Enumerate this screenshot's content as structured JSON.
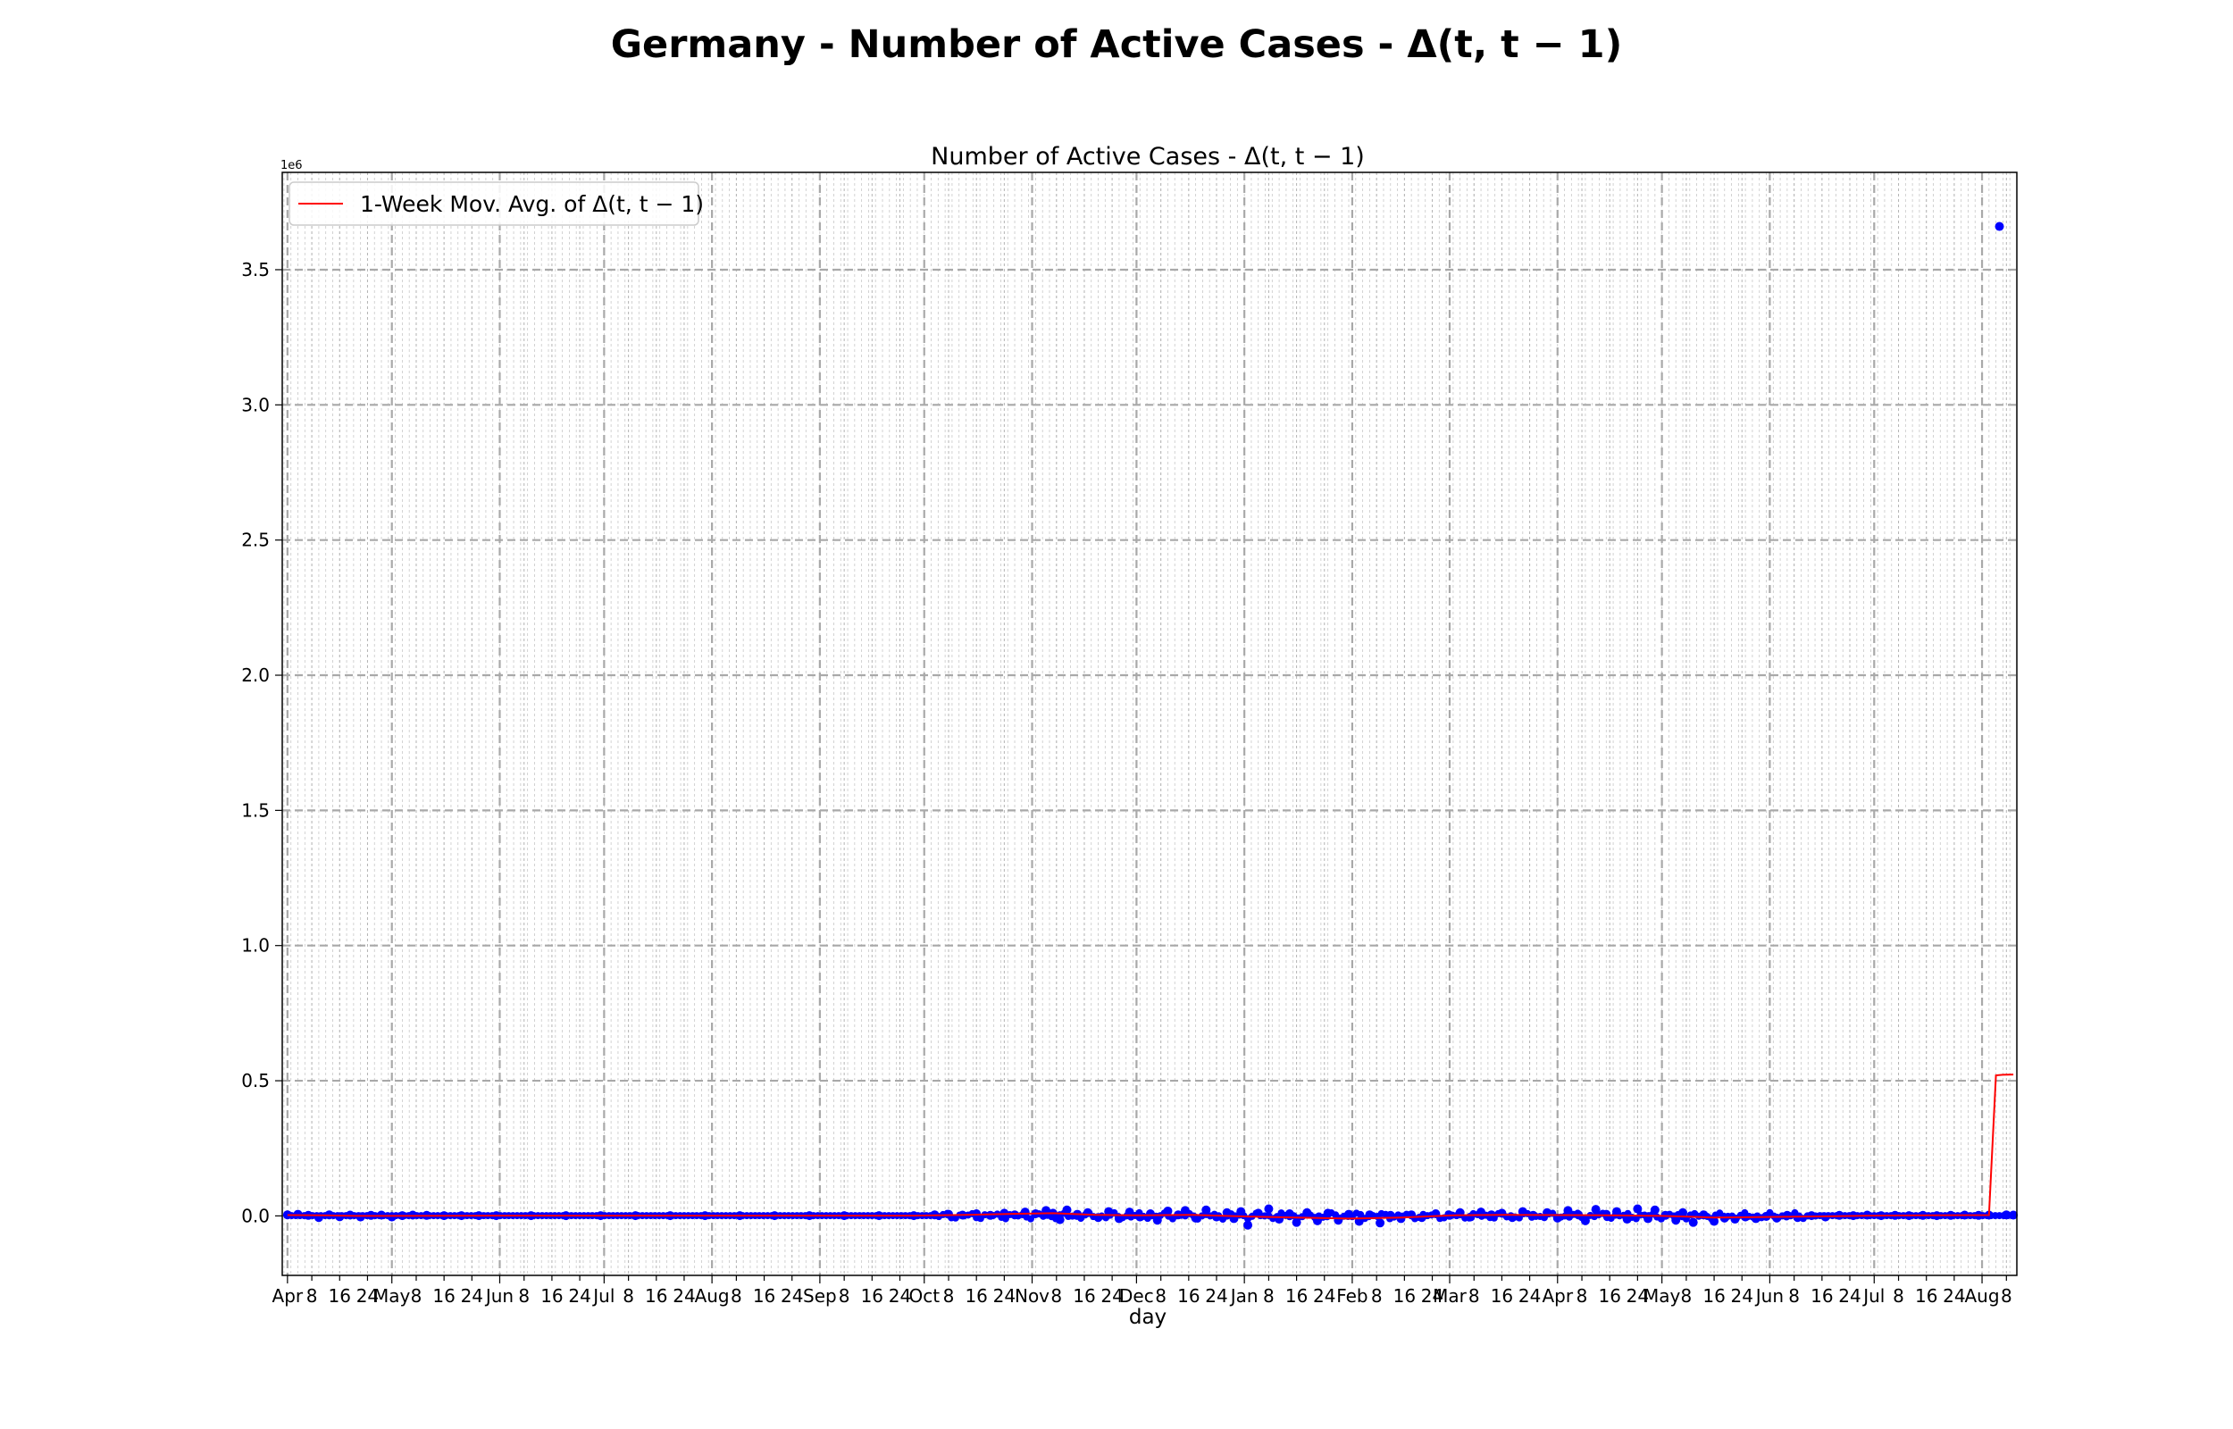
{
  "chart_data": {
    "type": "scatter",
    "title": "Germany - Number of Active Cases - Δ(t, t − 1)",
    "subtitle": "Number of Active Cases - Δ(t, t − 1)",
    "xlabel": "day",
    "ylabel": "",
    "y_scale_label": "1e6",
    "ylim": [
      -0.22,
      3.86
    ],
    "y_ticks": [
      0.0,
      0.5,
      1.0,
      1.5,
      2.0,
      2.5,
      3.0,
      3.5
    ],
    "y_tick_labels": [
      "0.0",
      "0.5",
      "1.0",
      "1.5",
      "2.0",
      "2.5",
      "3.0",
      "3.5"
    ],
    "x_range_days": [
      -1.5,
      497
    ],
    "x_ticks": [
      {
        "day": 0,
        "label": "Apr",
        "major": true
      },
      {
        "day": 7,
        "label": "8",
        "major": false
      },
      {
        "day": 15,
        "label": "16",
        "major": false
      },
      {
        "day": 23,
        "label": "24",
        "major": false
      },
      {
        "day": 30,
        "label": "May",
        "major": true
      },
      {
        "day": 37,
        "label": "8",
        "major": false
      },
      {
        "day": 45,
        "label": "16",
        "major": false
      },
      {
        "day": 53,
        "label": "24",
        "major": false
      },
      {
        "day": 61,
        "label": "Jun",
        "major": true
      },
      {
        "day": 68,
        "label": "8",
        "major": false
      },
      {
        "day": 76,
        "label": "16",
        "major": false
      },
      {
        "day": 84,
        "label": "24",
        "major": false
      },
      {
        "day": 91,
        "label": "Jul",
        "major": true
      },
      {
        "day": 98,
        "label": "8",
        "major": false
      },
      {
        "day": 106,
        "label": "16",
        "major": false
      },
      {
        "day": 114,
        "label": "24",
        "major": false
      },
      {
        "day": 122,
        "label": "Aug",
        "major": true
      },
      {
        "day": 129,
        "label": "8",
        "major": false
      },
      {
        "day": 137,
        "label": "16",
        "major": false
      },
      {
        "day": 145,
        "label": "24",
        "major": false
      },
      {
        "day": 153,
        "label": "Sep",
        "major": true
      },
      {
        "day": 160,
        "label": "8",
        "major": false
      },
      {
        "day": 168,
        "label": "16",
        "major": false
      },
      {
        "day": 176,
        "label": "24",
        "major": false
      },
      {
        "day": 183,
        "label": "Oct",
        "major": true
      },
      {
        "day": 190,
        "label": "8",
        "major": false
      },
      {
        "day": 198,
        "label": "16",
        "major": false
      },
      {
        "day": 206,
        "label": "24",
        "major": false
      },
      {
        "day": 214,
        "label": "Nov",
        "major": true
      },
      {
        "day": 221,
        "label": "8",
        "major": false
      },
      {
        "day": 229,
        "label": "16",
        "major": false
      },
      {
        "day": 237,
        "label": "24",
        "major": false
      },
      {
        "day": 244,
        "label": "Dec",
        "major": true
      },
      {
        "day": 251,
        "label": "8",
        "major": false
      },
      {
        "day": 259,
        "label": "16",
        "major": false
      },
      {
        "day": 267,
        "label": "24",
        "major": false
      },
      {
        "day": 275,
        "label": "Jan",
        "major": true
      },
      {
        "day": 282,
        "label": "8",
        "major": false
      },
      {
        "day": 290,
        "label": "16",
        "major": false
      },
      {
        "day": 298,
        "label": "24",
        "major": false
      },
      {
        "day": 306,
        "label": "Feb",
        "major": true
      },
      {
        "day": 313,
        "label": "8",
        "major": false
      },
      {
        "day": 321,
        "label": "16",
        "major": false
      },
      {
        "day": 329,
        "label": "24",
        "major": false
      },
      {
        "day": 334,
        "label": "Mar",
        "major": true
      },
      {
        "day": 341,
        "label": "8",
        "major": false
      },
      {
        "day": 349,
        "label": "16",
        "major": false
      },
      {
        "day": 357,
        "label": "24",
        "major": false
      },
      {
        "day": 365,
        "label": "Apr",
        "major": true
      },
      {
        "day": 372,
        "label": "8",
        "major": false
      },
      {
        "day": 380,
        "label": "16",
        "major": false
      },
      {
        "day": 388,
        "label": "24",
        "major": false
      },
      {
        "day": 395,
        "label": "May",
        "major": true
      },
      {
        "day": 402,
        "label": "8",
        "major": false
      },
      {
        "day": 410,
        "label": "16",
        "major": false
      },
      {
        "day": 418,
        "label": "24",
        "major": false
      },
      {
        "day": 426,
        "label": "Jun",
        "major": true
      },
      {
        "day": 433,
        "label": "8",
        "major": false
      },
      {
        "day": 441,
        "label": "16",
        "major": false
      },
      {
        "day": 449,
        "label": "24",
        "major": false
      },
      {
        "day": 456,
        "label": "Jul",
        "major": true
      },
      {
        "day": 463,
        "label": "8",
        "major": false
      },
      {
        "day": 471,
        "label": "16",
        "major": false
      },
      {
        "day": 479,
        "label": "24",
        "major": false
      },
      {
        "day": 487,
        "label": "Aug",
        "major": true
      },
      {
        "day": 494,
        "label": "8",
        "major": false
      }
    ],
    "grid": true,
    "legend_position": "top-left",
    "series": [
      {
        "name": "",
        "kind": "scatter",
        "color": "#0000ff",
        "points": [
          [
            0,
            0.004
          ],
          [
            3,
            0.006
          ],
          [
            6,
            0.002
          ],
          [
            9,
            -0.006
          ],
          [
            12,
            0.004
          ],
          [
            15,
            -0.003
          ],
          [
            18,
            0.003
          ],
          [
            21,
            -0.004
          ],
          [
            24,
            0.002
          ],
          [
            27,
            0.003
          ],
          [
            30,
            -0.004
          ],
          [
            33,
            0.001
          ],
          [
            36,
            0.003
          ],
          [
            40,
            0.002
          ],
          [
            45,
            0.001
          ],
          [
            50,
            0.001
          ],
          [
            55,
            0.001
          ],
          [
            60,
            0.001
          ],
          [
            70,
            0.001
          ],
          [
            80,
            0.001
          ],
          [
            90,
            0.001
          ],
          [
            100,
            0.001
          ],
          [
            110,
            0.001
          ],
          [
            120,
            0.001
          ],
          [
            130,
            0.001
          ],
          [
            140,
            0.001
          ],
          [
            150,
            0.001
          ],
          [
            160,
            0.001
          ],
          [
            170,
            0.001
          ],
          [
            180,
            0.001
          ],
          [
            186,
            0.004
          ],
          [
            190,
            0.006
          ],
          [
            194,
            0.003
          ],
          [
            198,
            0.008
          ],
          [
            202,
            0.002
          ],
          [
            206,
            0.01
          ],
          [
            209,
            0.004
          ],
          [
            212,
            0.014
          ],
          [
            215,
            0.008
          ],
          [
            218,
            0.02
          ],
          [
            220,
            0.01
          ],
          [
            222,
            -0.014
          ],
          [
            224,
            0.022
          ],
          [
            227,
            0.006
          ],
          [
            230,
            0.012
          ],
          [
            233,
            -0.006
          ],
          [
            236,
            0.016
          ],
          [
            239,
            -0.01
          ],
          [
            242,
            0.014
          ],
          [
            245,
            -0.004
          ],
          [
            248,
            0.008
          ],
          [
            250,
            -0.016
          ],
          [
            253,
            0.018
          ],
          [
            256,
            0.004
          ],
          [
            258,
            0.02
          ],
          [
            261,
            -0.008
          ],
          [
            264,
            0.022
          ],
          [
            267,
            -0.004
          ],
          [
            270,
            0.012
          ],
          [
            272,
            -0.01
          ],
          [
            274,
            0.016
          ],
          [
            276,
            -0.034
          ],
          [
            279,
            0.01
          ],
          [
            282,
            0.026
          ],
          [
            285,
            -0.012
          ],
          [
            288,
            0.008
          ],
          [
            290,
            -0.024
          ],
          [
            293,
            0.012
          ],
          [
            296,
            -0.018
          ],
          [
            299,
            0.01
          ],
          [
            302,
            -0.016
          ],
          [
            305,
            0.006
          ],
          [
            308,
            -0.02
          ],
          [
            311,
            0.004
          ],
          [
            314,
            -0.026
          ],
          [
            317,
            0.002
          ],
          [
            320,
            -0.01
          ],
          [
            323,
            0.004
          ],
          [
            326,
            -0.006
          ],
          [
            330,
            0.008
          ],
          [
            334,
            0.002
          ],
          [
            337,
            0.012
          ],
          [
            340,
            -0.004
          ],
          [
            343,
            0.014
          ],
          [
            346,
            0.004
          ],
          [
            349,
            0.01
          ],
          [
            352,
            -0.006
          ],
          [
            355,
            0.016
          ],
          [
            358,
            0.002
          ],
          [
            362,
            0.012
          ],
          [
            365,
            -0.008
          ],
          [
            368,
            0.02
          ],
          [
            371,
            0.004
          ],
          [
            373,
            -0.018
          ],
          [
            376,
            0.024
          ],
          [
            379,
            0.006
          ],
          [
            382,
            0.016
          ],
          [
            385,
            -0.012
          ],
          [
            388,
            0.026
          ],
          [
            391,
            -0.01
          ],
          [
            393,
            0.022
          ],
          [
            396,
            0.002
          ],
          [
            399,
            -0.016
          ],
          [
            401,
            0.012
          ],
          [
            404,
            -0.024
          ],
          [
            407,
            0.004
          ],
          [
            410,
            -0.02
          ],
          [
            413,
            -0.008
          ],
          [
            416,
            -0.012
          ],
          [
            419,
            -0.004
          ],
          [
            422,
            -0.01
          ],
          [
            425,
            -0.002
          ],
          [
            428,
            -0.008
          ],
          [
            431,
            0.002
          ],
          [
            434,
            -0.006
          ],
          [
            438,
            0.001
          ],
          [
            442,
            -0.004
          ],
          [
            446,
            0.002
          ],
          [
            450,
            0.001
          ],
          [
            454,
            0.003
          ],
          [
            458,
            0.001
          ],
          [
            462,
            0.002
          ],
          [
            466,
            0.001
          ],
          [
            470,
            0.002
          ],
          [
            474,
            0.001
          ],
          [
            478,
            0.002
          ],
          [
            482,
            0.003
          ],
          [
            486,
            0.002
          ],
          [
            489,
            0.003
          ],
          [
            492,
            3.66
          ],
          [
            494,
            0.004
          ],
          [
            496,
            0.003
          ]
        ]
      },
      {
        "name": "1-Week Mov. Avg. of Δ(t, t − 1)",
        "kind": "line",
        "color": "#ff0000",
        "points": [
          [
            0,
            0.003
          ],
          [
            10,
            0.002
          ],
          [
            20,
            0.0
          ],
          [
            30,
            0.0
          ],
          [
            60,
            0.001
          ],
          [
            120,
            0.001
          ],
          [
            180,
            0.001
          ],
          [
            195,
            0.004
          ],
          [
            210,
            0.008
          ],
          [
            220,
            0.01
          ],
          [
            232,
            0.004
          ],
          [
            245,
            0.002
          ],
          [
            260,
            0.004
          ],
          [
            275,
            -0.002
          ],
          [
            290,
            -0.006
          ],
          [
            305,
            -0.01
          ],
          [
            320,
            -0.006
          ],
          [
            335,
            0.002
          ],
          [
            350,
            0.004
          ],
          [
            365,
            0.003
          ],
          [
            380,
            0.002
          ],
          [
            395,
            0.0
          ],
          [
            410,
            -0.006
          ],
          [
            425,
            -0.004
          ],
          [
            440,
            -0.002
          ],
          [
            455,
            0.001
          ],
          [
            470,
            0.002
          ],
          [
            489,
            0.003
          ],
          [
            491,
            0.52
          ],
          [
            493,
            0.522
          ],
          [
            496,
            0.523
          ]
        ]
      }
    ]
  }
}
